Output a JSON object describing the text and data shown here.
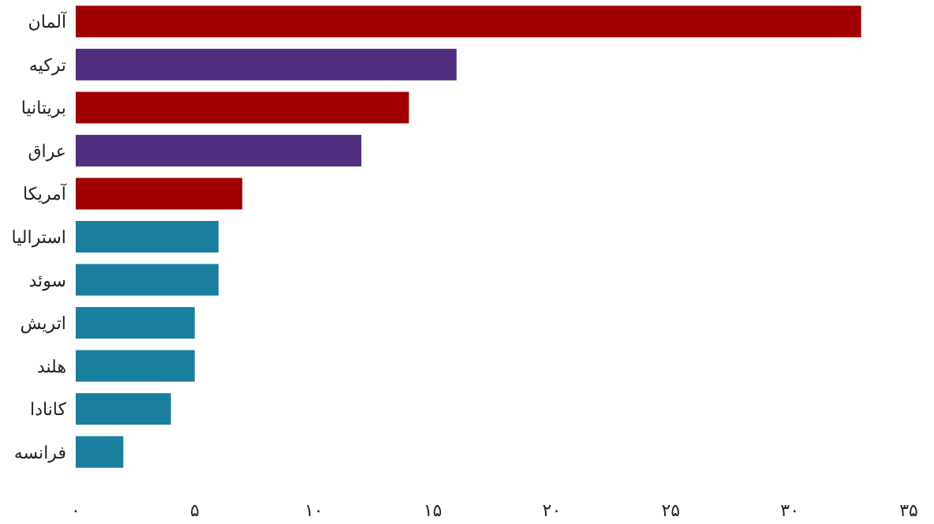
{
  "chart_data": {
    "type": "bar",
    "orientation": "horizontal",
    "categories": [
      "آلمان",
      "ترکیه",
      "بریتانیا",
      "عراق",
      "آمریکا",
      "استرالیا",
      "سوئد",
      "اتریش",
      "هلند",
      "کانادا",
      "فرانسه"
    ],
    "values": [
      33,
      16,
      14,
      12,
      7,
      6,
      6,
      5,
      5,
      4,
      2
    ],
    "colors": [
      "#a00000",
      "#4f2d7f",
      "#a00000",
      "#4f2d7f",
      "#a00000",
      "#1a7f9f",
      "#1a7f9f",
      "#1a7f9f",
      "#1a7f9f",
      "#1a7f9f",
      "#1a7f9f"
    ],
    "xlim": [
      0,
      35
    ],
    "xticks": [
      {
        "value": 0,
        "label": "۰"
      },
      {
        "value": 5,
        "label": "۵"
      },
      {
        "value": 10,
        "label": "۱۰"
      },
      {
        "value": 15,
        "label": "۱۵"
      },
      {
        "value": 20,
        "label": "۲۰"
      },
      {
        "value": 25,
        "label": "۲۵"
      },
      {
        "value": 30,
        "label": "۳۰"
      },
      {
        "value": 35,
        "label": "۳۵"
      }
    ],
    "grid": false
  }
}
